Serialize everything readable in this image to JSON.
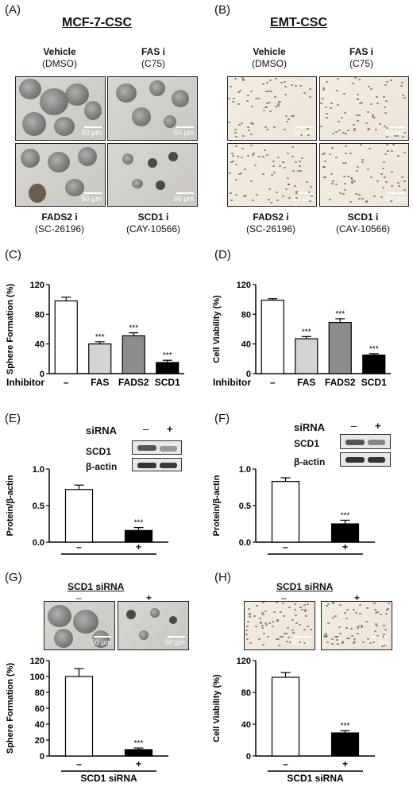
{
  "panelA": {
    "label": "(A)",
    "title": "MCF-7-CSC",
    "conditions": [
      {
        "name": "Vehicle",
        "detail": "(DMSO)"
      },
      {
        "name": "FAS i",
        "detail": "(C75)"
      },
      {
        "name": "FADS2 i",
        "detail": "(SC-26196)"
      },
      {
        "name": "SCD1 i",
        "detail": "(CAY-10566)"
      }
    ],
    "scale": "50 µm"
  },
  "panelB": {
    "label": "(B)",
    "title": "EMT-CSC",
    "conditions": [
      {
        "name": "Vehicle",
        "detail": "(DMSO)"
      },
      {
        "name": "FAS i",
        "detail": "(C75)"
      },
      {
        "name": "FADS2 i",
        "detail": "(SC-26196)"
      },
      {
        "name": "SCD1 i",
        "detail": "(CAY-10566)"
      }
    ],
    "scale": "50 µm"
  },
  "panelC": {
    "label": "(C)"
  },
  "panelD": {
    "label": "(D)"
  },
  "panelE": {
    "label": "(E)",
    "siRNA": "siRNA",
    "minus": "–",
    "plus": "+",
    "protein": "SCD1",
    "loading": "β-actin"
  },
  "panelF": {
    "label": "(F)",
    "siRNA": "siRNA",
    "minus": "–",
    "plus": "+",
    "protein": "SCD1",
    "loading": "β-actin"
  },
  "panelG": {
    "label": "(G)",
    "title": "SCD1 siRNA",
    "minus": "–",
    "plus": "+",
    "scale": "50 µm"
  },
  "panelH": {
    "label": "(H)",
    "title": "SCD1 siRNA",
    "minus": "–",
    "plus": "+",
    "scale": "50 µm"
  },
  "chart_data": [
    {
      "id": "C",
      "type": "bar",
      "ylabel": "Sphere Formation (%)",
      "xlabel_prefix": "Inhibitor",
      "categories": [
        "–",
        "FAS",
        "FADS2",
        "SCD1"
      ],
      "values": [
        98,
        40,
        51,
        15
      ],
      "errors": [
        5,
        3,
        4,
        3
      ],
      "colors": [
        "#ffffff",
        "#d3d3d3",
        "#8c8c8c",
        "#000000"
      ],
      "significance": [
        "",
        "***",
        "***",
        "***"
      ],
      "ylim": [
        0,
        120
      ],
      "yticks": [
        0,
        40,
        80,
        120
      ]
    },
    {
      "id": "D",
      "type": "bar",
      "ylabel": "Cell Viability (%)",
      "xlabel_prefix": "Inhibitor",
      "categories": [
        "–",
        "FAS",
        "FADS2",
        "SCD1"
      ],
      "values": [
        99,
        47,
        69,
        25
      ],
      "errors": [
        2,
        3,
        5,
        2
      ],
      "colors": [
        "#ffffff",
        "#d3d3d3",
        "#8c8c8c",
        "#000000"
      ],
      "significance": [
        "",
        "***",
        "***",
        "***"
      ],
      "ylim": [
        0,
        120
      ],
      "yticks": [
        0,
        40,
        80,
        120
      ]
    },
    {
      "id": "E",
      "type": "bar",
      "ylabel": "Protein/β-actin",
      "xlabel": "siRNA",
      "categories": [
        "–",
        "+"
      ],
      "values": [
        0.72,
        0.16
      ],
      "errors": [
        0.06,
        0.04
      ],
      "colors": [
        "#ffffff",
        "#000000"
      ],
      "significance": [
        "",
        "***"
      ],
      "ylim": [
        0,
        1.0
      ],
      "yticks": [
        0.0,
        0.5,
        1.0
      ],
      "ytick_labels": [
        "0.0",
        "0.5",
        "1.0"
      ]
    },
    {
      "id": "F",
      "type": "bar",
      "ylabel": "Protein/β-actin",
      "xlabel": "siRNA",
      "categories": [
        "–",
        "+"
      ],
      "values": [
        0.83,
        0.25
      ],
      "errors": [
        0.05,
        0.05
      ],
      "colors": [
        "#ffffff",
        "#000000"
      ],
      "significance": [
        "",
        "***"
      ],
      "ylim": [
        0,
        1.0
      ],
      "yticks": [
        0.0,
        0.5,
        1.0
      ],
      "ytick_labels": [
        "0.0",
        "0.5",
        "1.0"
      ]
    },
    {
      "id": "G",
      "type": "bar",
      "ylabel": "Sphere Formation (%)",
      "xlabel": "SCD1  siRNA",
      "categories": [
        "–",
        "+"
      ],
      "values": [
        100,
        8
      ],
      "errors": [
        10,
        2
      ],
      "colors": [
        "#ffffff",
        "#000000"
      ],
      "significance": [
        "",
        "***"
      ],
      "ylim": [
        0,
        120
      ],
      "yticks": [
        0,
        20,
        40,
        60,
        80,
        100,
        120
      ]
    },
    {
      "id": "H",
      "type": "bar",
      "ylabel": "Cell Viability (%)",
      "xlabel": "SCD1  siRNA",
      "categories": [
        "–",
        "+"
      ],
      "values": [
        99,
        29
      ],
      "errors": [
        6,
        3
      ],
      "colors": [
        "#ffffff",
        "#000000"
      ],
      "significance": [
        "",
        "***"
      ],
      "ylim": [
        0,
        120
      ],
      "yticks": [
        0,
        40,
        80,
        120
      ]
    }
  ]
}
